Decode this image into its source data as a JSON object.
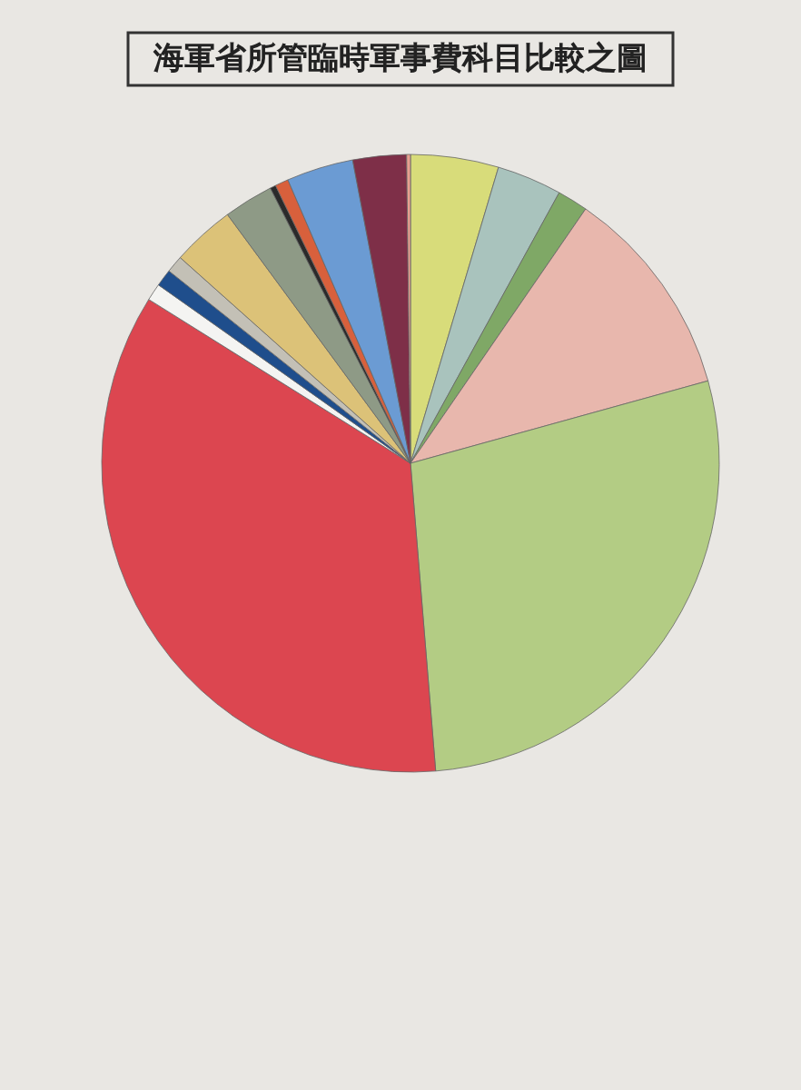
{
  "chart_data": {
    "type": "pie",
    "title": "海軍省所管臨時軍事費科目比較之圖",
    "categories": [
      null,
      null,
      null,
      null,
      null,
      null,
      null,
      null,
      null,
      null,
      null,
      null,
      null,
      null,
      null,
      null
    ],
    "values": [
      4.6,
      3.4,
      1.6,
      11.1,
      28.0,
      35.2,
      0.9,
      0.9,
      0.9,
      3.3,
      2.6,
      0.3,
      0.7,
      3.5,
      2.8,
      0.2
    ],
    "colors": [
      "#d8dc7a",
      "#a9c3bd",
      "#7fa866",
      "#e8b7ad",
      "#b3cc84",
      "#dc4650",
      "#f4f4f2",
      "#1f4e8c",
      "#c3c0b6",
      "#dcc278",
      "#8e9a86",
      "#2a2a2a",
      "#d8603c",
      "#6b9bd3",
      "#7e2f48",
      "#e8a090"
    ]
  }
}
